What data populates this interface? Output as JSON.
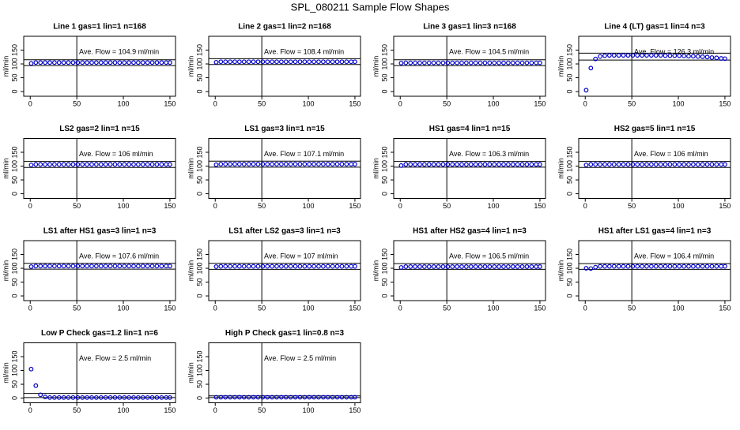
{
  "title": "SPL_080211  Sample Flow Shapes",
  "chart_data": [
    {
      "type": "scatter",
      "title": "Line 1 gas=1 lin=1 n=168",
      "ylabel": "ml/min",
      "annotation": "Ave. Flow =  104.9  ml/min",
      "xlim": [
        -7,
        156
      ],
      "ylim": [
        -17,
        200
      ],
      "xticks": [
        0,
        50,
        100,
        150
      ],
      "yticks": [
        0,
        50,
        100,
        150
      ],
      "vline": 50,
      "hlines": [
        94,
        115
      ],
      "color": "#0000cc",
      "x": [
        1,
        6,
        11,
        16,
        21,
        26,
        31,
        36,
        41,
        46,
        51,
        56,
        61,
        66,
        71,
        76,
        81,
        86,
        91,
        96,
        101,
        106,
        111,
        116,
        121,
        126,
        131,
        136,
        141,
        146,
        150
      ],
      "values": [
        102,
        105,
        105,
        105,
        105,
        105,
        105,
        105,
        105,
        105,
        105,
        105,
        105,
        105,
        105,
        105,
        105,
        105,
        105,
        105,
        105,
        105,
        105,
        105,
        105,
        105,
        105,
        105,
        105,
        105,
        105
      ]
    },
    {
      "type": "scatter",
      "title": "Line 2 gas=1 lin=2 n=168",
      "ylabel": "ml/min",
      "annotation": "Ave. Flow =  108.4  ml/min",
      "xlim": [
        -7,
        156
      ],
      "ylim": [
        -17,
        200
      ],
      "xticks": [
        0,
        50,
        100,
        150
      ],
      "yticks": [
        0,
        50,
        100,
        150
      ],
      "vline": 50,
      "hlines": [
        98,
        119
      ],
      "color": "#0000cc",
      "x": [
        1,
        6,
        11,
        16,
        21,
        26,
        31,
        36,
        41,
        46,
        51,
        56,
        61,
        66,
        71,
        76,
        81,
        86,
        91,
        96,
        101,
        106,
        111,
        116,
        121,
        126,
        131,
        136,
        141,
        146,
        150
      ],
      "values": [
        106,
        108,
        108,
        108,
        108,
        108,
        108,
        108,
        108,
        108,
        108,
        108,
        108,
        108,
        108,
        108,
        108,
        108,
        108,
        108,
        108,
        108,
        108,
        108,
        108,
        108,
        108,
        108,
        108,
        108,
        108
      ]
    },
    {
      "type": "scatter",
      "title": "Line 3 gas=1 lin=3 n=168",
      "ylabel": "ml/min",
      "annotation": "Ave. Flow =  104.5  ml/min",
      "xlim": [
        -7,
        156
      ],
      "ylim": [
        -17,
        200
      ],
      "xticks": [
        0,
        50,
        100,
        150
      ],
      "yticks": [
        0,
        50,
        100,
        150
      ],
      "vline": 50,
      "hlines": [
        94,
        115
      ],
      "color": "#0000cc",
      "x": [
        1,
        6,
        11,
        16,
        21,
        26,
        31,
        36,
        41,
        46,
        51,
        56,
        61,
        66,
        71,
        76,
        81,
        86,
        91,
        96,
        101,
        106,
        111,
        116,
        121,
        126,
        131,
        136,
        141,
        146,
        150
      ],
      "values": [
        103,
        104,
        104,
        104,
        104,
        104,
        104,
        104,
        104,
        104,
        104,
        104,
        104,
        104,
        104,
        104,
        104,
        104,
        104,
        104,
        104,
        104,
        104,
        104,
        104,
        104,
        104,
        104,
        104,
        104,
        104
      ]
    },
    {
      "type": "scatter",
      "title": "Line 4 (LT) gas=1 lin=4 n=3",
      "ylabel": "ml/min",
      "annotation": "Ave. Flow =  126.3  ml/min",
      "xlim": [
        -7,
        156
      ],
      "ylim": [
        -17,
        200
      ],
      "xticks": [
        0,
        50,
        100,
        150
      ],
      "yticks": [
        0,
        50,
        100,
        150
      ],
      "vline": 50,
      "hlines": [
        114,
        139
      ],
      "color": "#0000cc",
      "x": [
        1,
        6,
        11,
        16,
        21,
        26,
        31,
        36,
        41,
        46,
        51,
        56,
        61,
        66,
        71,
        76,
        81,
        86,
        91,
        96,
        101,
        106,
        111,
        116,
        121,
        126,
        131,
        136,
        141,
        146,
        150
      ],
      "values": [
        5,
        85,
        118,
        127,
        130,
        131,
        131,
        131,
        131,
        131,
        131,
        131,
        131,
        131,
        131,
        131,
        131,
        130,
        130,
        130,
        130,
        129,
        128,
        128,
        127,
        126,
        125,
        123,
        122,
        120,
        119
      ]
    },
    {
      "type": "scatter",
      "title": "LS2 gas=2 lin=1 n=15",
      "ylabel": "ml/min",
      "annotation": "Ave. Flow =  106  ml/min",
      "xlim": [
        -7,
        156
      ],
      "ylim": [
        -17,
        200
      ],
      "xticks": [
        0,
        50,
        100,
        150
      ],
      "yticks": [
        0,
        50,
        100,
        150
      ],
      "vline": 50,
      "hlines": [
        95,
        117
      ],
      "color": "#0000cc",
      "x": [
        1,
        6,
        11,
        16,
        21,
        26,
        31,
        36,
        41,
        46,
        51,
        56,
        61,
        66,
        71,
        76,
        81,
        86,
        91,
        96,
        101,
        106,
        111,
        116,
        121,
        126,
        131,
        136,
        141,
        146,
        150
      ],
      "values": [
        104,
        106,
        106,
        106,
        106,
        106,
        106,
        106,
        106,
        106,
        106,
        106,
        106,
        106,
        106,
        106,
        106,
        106,
        106,
        106,
        106,
        106,
        106,
        106,
        106,
        106,
        106,
        106,
        106,
        106,
        106
      ]
    },
    {
      "type": "scatter",
      "title": "LS1 gas=3 lin=1 n=15",
      "ylabel": "ml/min",
      "annotation": "Ave. Flow =  107.1  ml/min",
      "xlim": [
        -7,
        156
      ],
      "ylim": [
        -17,
        200
      ],
      "xticks": [
        0,
        50,
        100,
        150
      ],
      "yticks": [
        0,
        50,
        100,
        150
      ],
      "vline": 50,
      "hlines": [
        96,
        118
      ],
      "color": "#0000cc",
      "x": [
        1,
        6,
        11,
        16,
        21,
        26,
        31,
        36,
        41,
        46,
        51,
        56,
        61,
        66,
        71,
        76,
        81,
        86,
        91,
        96,
        101,
        106,
        111,
        116,
        121,
        126,
        131,
        136,
        141,
        146,
        150
      ],
      "values": [
        105,
        107,
        107,
        107,
        107,
        107,
        107,
        107,
        107,
        107,
        107,
        107,
        107,
        107,
        107,
        107,
        107,
        107,
        107,
        107,
        107,
        107,
        107,
        107,
        107,
        107,
        107,
        107,
        107,
        107,
        107
      ]
    },
    {
      "type": "scatter",
      "title": "HS1 gas=4 lin=1 n=15",
      "ylabel": "ml/min",
      "annotation": "Ave. Flow =  106.3  ml/min",
      "xlim": [
        -7,
        156
      ],
      "ylim": [
        -17,
        200
      ],
      "xticks": [
        0,
        50,
        100,
        150
      ],
      "yticks": [
        0,
        50,
        100,
        150
      ],
      "vline": 50,
      "hlines": [
        96,
        117
      ],
      "color": "#0000cc",
      "x": [
        1,
        6,
        11,
        16,
        21,
        26,
        31,
        36,
        41,
        46,
        51,
        56,
        61,
        66,
        71,
        76,
        81,
        86,
        91,
        96,
        101,
        106,
        111,
        116,
        121,
        126,
        131,
        136,
        141,
        146,
        150
      ],
      "values": [
        102,
        106,
        106,
        106,
        106,
        106,
        106,
        106,
        106,
        106,
        106,
        106,
        106,
        106,
        106,
        106,
        106,
        106,
        106,
        106,
        106,
        106,
        106,
        106,
        106,
        106,
        106,
        106,
        106,
        106,
        106
      ]
    },
    {
      "type": "scatter",
      "title": "HS2 gas=5 lin=1 n=15",
      "ylabel": "ml/min",
      "annotation": "Ave. Flow =  106  ml/min",
      "xlim": [
        -7,
        156
      ],
      "ylim": [
        -17,
        200
      ],
      "xticks": [
        0,
        50,
        100,
        150
      ],
      "yticks": [
        0,
        50,
        100,
        150
      ],
      "vline": 50,
      "hlines": [
        95,
        117
      ],
      "color": "#0000cc",
      "x": [
        1,
        6,
        11,
        16,
        21,
        26,
        31,
        36,
        41,
        46,
        51,
        56,
        61,
        66,
        71,
        76,
        81,
        86,
        91,
        96,
        101,
        106,
        111,
        116,
        121,
        126,
        131,
        136,
        141,
        146,
        150
      ],
      "values": [
        104,
        106,
        106,
        106,
        106,
        106,
        106,
        106,
        106,
        106,
        106,
        106,
        106,
        106,
        106,
        106,
        106,
        106,
        106,
        106,
        106,
        106,
        106,
        106,
        106,
        106,
        106,
        106,
        106,
        106,
        106
      ]
    },
    {
      "type": "scatter",
      "title": "LS1 after HS1 gas=3 lin=1 n=3",
      "ylabel": "ml/min",
      "annotation": "Ave. Flow =  107.6  ml/min",
      "xlim": [
        -7,
        156
      ],
      "ylim": [
        -17,
        200
      ],
      "xticks": [
        0,
        50,
        100,
        150
      ],
      "yticks": [
        0,
        50,
        100,
        150
      ],
      "vline": 50,
      "hlines": [
        97,
        118
      ],
      "color": "#0000cc",
      "x": [
        1,
        6,
        11,
        16,
        21,
        26,
        31,
        36,
        41,
        46,
        51,
        56,
        61,
        66,
        71,
        76,
        81,
        86,
        91,
        96,
        101,
        106,
        111,
        116,
        121,
        126,
        131,
        136,
        141,
        146,
        150
      ],
      "values": [
        106,
        108,
        108,
        108,
        108,
        108,
        108,
        108,
        108,
        108,
        108,
        108,
        108,
        108,
        108,
        108,
        108,
        108,
        108,
        108,
        108,
        108,
        108,
        108,
        108,
        108,
        108,
        108,
        108,
        108,
        108
      ]
    },
    {
      "type": "scatter",
      "title": "LS1 after LS2 gas=3 lin=1 n=3",
      "ylabel": "ml/min",
      "annotation": "Ave. Flow =  107  ml/min",
      "xlim": [
        -7,
        156
      ],
      "ylim": [
        -17,
        200
      ],
      "xticks": [
        0,
        50,
        100,
        150
      ],
      "yticks": [
        0,
        50,
        100,
        150
      ],
      "vline": 50,
      "hlines": [
        96,
        118
      ],
      "color": "#0000cc",
      "x": [
        1,
        6,
        11,
        16,
        21,
        26,
        31,
        36,
        41,
        46,
        51,
        56,
        61,
        66,
        71,
        76,
        81,
        86,
        91,
        96,
        101,
        106,
        111,
        116,
        121,
        126,
        131,
        136,
        141,
        146,
        150
      ],
      "values": [
        106,
        107,
        107,
        107,
        107,
        107,
        107,
        107,
        107,
        107,
        107,
        107,
        107,
        107,
        107,
        107,
        107,
        107,
        107,
        107,
        107,
        107,
        107,
        107,
        107,
        107,
        107,
        107,
        107,
        107,
        107
      ]
    },
    {
      "type": "scatter",
      "title": "HS1 after HS2 gas=4 lin=1 n=3",
      "ylabel": "ml/min",
      "annotation": "Ave. Flow =  106.5  ml/min",
      "xlim": [
        -7,
        156
      ],
      "ylim": [
        -17,
        200
      ],
      "xticks": [
        0,
        50,
        100,
        150
      ],
      "yticks": [
        0,
        50,
        100,
        150
      ],
      "vline": 50,
      "hlines": [
        96,
        117
      ],
      "color": "#0000cc",
      "x": [
        1,
        6,
        11,
        16,
        21,
        26,
        31,
        36,
        41,
        46,
        51,
        56,
        61,
        66,
        71,
        76,
        81,
        86,
        91,
        96,
        101,
        106,
        111,
        116,
        121,
        126,
        131,
        136,
        141,
        146,
        150
      ],
      "values": [
        103,
        106,
        106,
        106,
        106,
        106,
        106,
        106,
        106,
        106,
        106,
        106,
        106,
        106,
        106,
        106,
        106,
        106,
        106,
        106,
        106,
        106,
        106,
        106,
        106,
        106,
        106,
        106,
        106,
        106,
        106
      ]
    },
    {
      "type": "scatter",
      "title": "HS1 after LS1 gas=4 lin=1 n=3",
      "ylabel": "ml/min",
      "annotation": "Ave. Flow =  106.4  ml/min",
      "xlim": [
        -7,
        156
      ],
      "ylim": [
        -17,
        200
      ],
      "xticks": [
        0,
        50,
        100,
        150
      ],
      "yticks": [
        0,
        50,
        100,
        150
      ],
      "vline": 50,
      "hlines": [
        96,
        117
      ],
      "color": "#0000cc",
      "x": [
        1,
        6,
        11,
        16,
        21,
        26,
        31,
        36,
        41,
        46,
        51,
        56,
        61,
        66,
        71,
        76,
        81,
        86,
        91,
        96,
        101,
        106,
        111,
        116,
        121,
        126,
        131,
        136,
        141,
        146,
        150
      ],
      "values": [
        100,
        99,
        104,
        107,
        107,
        107,
        107,
        107,
        107,
        107,
        107,
        107,
        107,
        107,
        107,
        107,
        107,
        107,
        107,
        107,
        107,
        107,
        107,
        107,
        107,
        107,
        107,
        107,
        107,
        107,
        107
      ]
    },
    {
      "type": "scatter",
      "title": "Low P Check gas=1.2 lin=1 n=6",
      "ylabel": "ml/min",
      "annotation": "Ave. Flow =  2.5  ml/min",
      "xlim": [
        -7,
        156
      ],
      "ylim": [
        -17,
        200
      ],
      "xticks": [
        0,
        50,
        100,
        150
      ],
      "yticks": [
        0,
        50,
        100,
        150
      ],
      "vline": 50,
      "hlines": [
        2,
        17
      ],
      "color": "#0000cc",
      "x": [
        1,
        6,
        11,
        16,
        21,
        26,
        31,
        36,
        41,
        46,
        51,
        56,
        61,
        66,
        71,
        76,
        81,
        86,
        91,
        96,
        101,
        106,
        111,
        116,
        121,
        126,
        131,
        136,
        141,
        146,
        150
      ],
      "values": [
        105,
        45,
        12,
        4,
        2,
        2,
        2,
        2,
        2,
        2,
        2,
        2,
        2,
        2,
        2,
        2,
        2,
        2,
        2,
        2,
        2,
        2,
        2,
        2,
        2,
        2,
        2,
        2,
        2,
        2,
        2
      ]
    },
    {
      "type": "scatter",
      "title": "High P Check gas=1 lin=0.8 n=3",
      "ylabel": "ml/min",
      "annotation": "Ave. Flow =  2.5  ml/min",
      "xlim": [
        -7,
        156
      ],
      "ylim": [
        -17,
        200
      ],
      "xticks": [
        0,
        50,
        100,
        150
      ],
      "yticks": [
        0,
        50,
        100,
        150
      ],
      "vline": 50,
      "hlines": [
        2,
        8
      ],
      "color": "#0000cc",
      "x": [
        1,
        6,
        11,
        16,
        21,
        26,
        31,
        36,
        41,
        46,
        51,
        56,
        61,
        66,
        71,
        76,
        81,
        86,
        91,
        96,
        101,
        106,
        111,
        116,
        121,
        126,
        131,
        136,
        141,
        146,
        150
      ],
      "values": [
        3,
        3,
        3,
        3,
        3,
        3,
        3,
        3,
        3,
        3,
        3,
        3,
        3,
        3,
        3,
        3,
        3,
        3,
        3,
        3,
        3,
        3,
        3,
        3,
        3,
        3,
        3,
        3,
        3,
        3,
        3
      ]
    }
  ]
}
